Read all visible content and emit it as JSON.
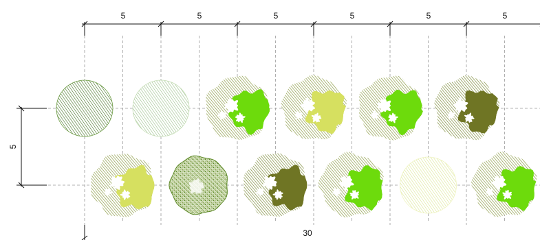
{
  "dimensions": {
    "spacing_labels": [
      "5",
      "5",
      "5",
      "5",
      "5",
      "5"
    ],
    "row_spacing_label": "5",
    "total_label": "30"
  },
  "rows": [
    [
      {
        "kind": "hatch",
        "colors": [
          "#4e7a2e",
          "#6a9a40"
        ]
      },
      {
        "kind": "hatch",
        "colors": [
          "#9fc490",
          "#c4dcb4"
        ]
      },
      {
        "kind": "tree",
        "colors": [
          "#8c9b45",
          "#6ddb0c"
        ]
      },
      {
        "kind": "tree",
        "colors": [
          "#8c9b45",
          "#d6e060"
        ]
      },
      {
        "kind": "tree",
        "colors": [
          "#8c9b45",
          "#6ddb0c"
        ]
      },
      {
        "kind": "tree",
        "colors": [
          "#7e8c3c",
          "#6f7524"
        ]
      }
    ],
    [
      {
        "kind": "tree",
        "colors": [
          "#8c9b45",
          "#d6e060"
        ]
      },
      {
        "kind": "stipple",
        "colors": [
          "#8ea55a",
          "#5f8a2a"
        ]
      },
      {
        "kind": "tree",
        "colors": [
          "#7e8c3c",
          "#6f7524"
        ]
      },
      {
        "kind": "tree",
        "colors": [
          "#8c9b45",
          "#6ddb0c"
        ]
      },
      {
        "kind": "hatch",
        "colors": [
          "#dde89a",
          "#eef3bf"
        ]
      },
      {
        "kind": "tree",
        "colors": [
          "#8c9b45",
          "#6ddb0c"
        ]
      }
    ]
  ]
}
